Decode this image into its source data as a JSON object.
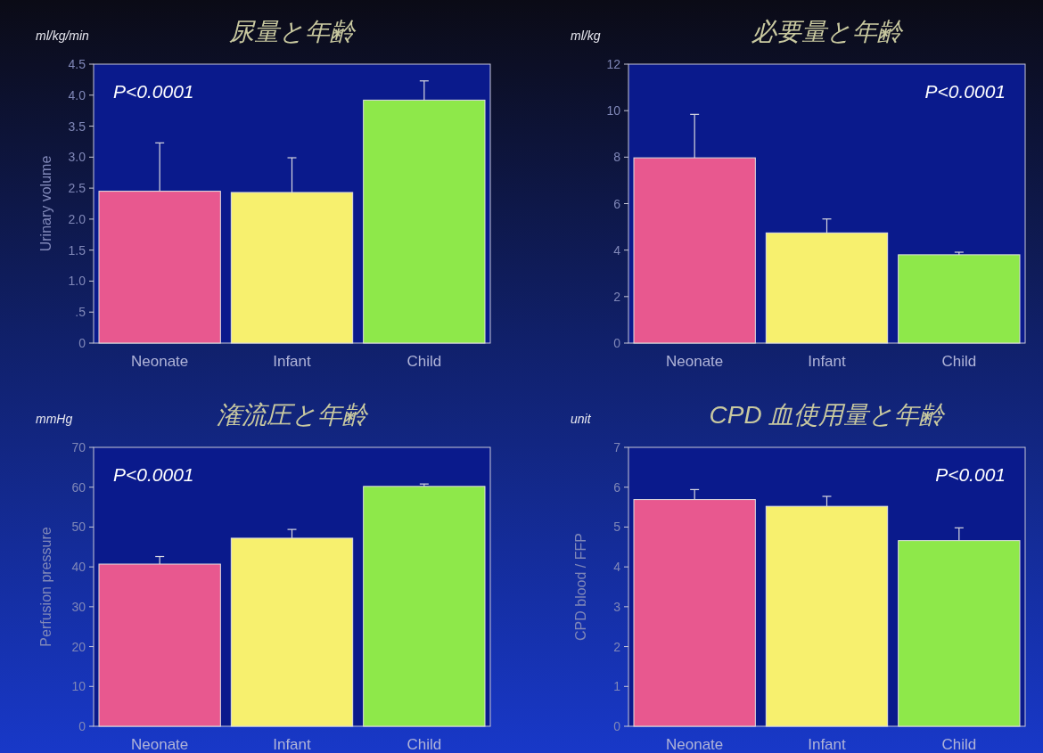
{
  "chart_data": [
    {
      "type": "bar",
      "title": "尿量と年齢",
      "ylabel": "Urinary volume",
      "annotations": [
        "ml/kg/min",
        "P<0.0001"
      ],
      "categories": [
        "Neonate",
        "Infant",
        "Child"
      ],
      "values": [
        2.45,
        2.43,
        3.92
      ],
      "errors": [
        0.78,
        0.56,
        0.31
      ],
      "colors": [
        "#e8588f",
        "#f7f06e",
        "#8ee84a"
      ],
      "ylim": [
        0,
        4.5
      ],
      "yticks": [
        0,
        {
          "value": 0.5,
          "label": ".5"
        },
        {
          "value": 1,
          "label": "1.0"
        },
        {
          "value": 1.5,
          "label": "1.5"
        },
        {
          "value": 2,
          "label": "2.0"
        },
        {
          "value": 2.5,
          "label": "2.5"
        },
        {
          "value": 3,
          "label": "3.0"
        },
        {
          "value": 3.5,
          "label": "3.5"
        },
        {
          "value": 4,
          "label": "4.0"
        },
        {
          "value": 4.5,
          "label": "4.5"
        }
      ]
    },
    {
      "type": "bar",
      "title": "必要量と年齢",
      "annotations": [
        "ml/kg",
        "P<0.0001"
      ],
      "categories": [
        "Neonate",
        "Infant",
        "Child"
      ],
      "values": [
        7.97,
        4.74,
        3.8
      ],
      "errors": [
        1.87,
        0.6,
        0.11
      ],
      "colors": [
        "#e8588f",
        "#f7f06e",
        "#8ee84a"
      ],
      "ylim": [
        0,
        12
      ],
      "yticks": [
        0,
        2,
        4,
        6,
        8,
        10,
        12
      ]
    },
    {
      "type": "bar",
      "title": "潅流圧と年齢",
      "ylabel": "Perfusion pressure",
      "annotations": [
        "mmHg",
        "P<0.0001"
      ],
      "categories": [
        "Neonate",
        "Infant",
        "Child"
      ],
      "values": [
        40.7,
        47.2,
        60.2
      ],
      "errors": [
        1.9,
        2.2,
        0.6
      ],
      "colors": [
        "#e8588f",
        "#f7f06e",
        "#8ee84a"
      ],
      "ylim": [
        0,
        70
      ],
      "yticks": [
        0,
        10,
        20,
        30,
        40,
        50,
        60,
        70
      ]
    },
    {
      "type": "bar",
      "title": "CPD 血使用量と年齢",
      "ylabel": "CPD blood / FFP",
      "annotations": [
        "unit",
        "P<0.001"
      ],
      "categories": [
        "Neonate",
        "Infant",
        "Child"
      ],
      "values": [
        5.69,
        5.52,
        4.66
      ],
      "errors": [
        0.25,
        0.25,
        0.32
      ],
      "colors": [
        "#e8588f",
        "#f7f06e",
        "#8ee84a"
      ],
      "ylim": [
        0,
        7
      ],
      "yticks": [
        0,
        1,
        2,
        3,
        4,
        5,
        6,
        7
      ]
    }
  ]
}
